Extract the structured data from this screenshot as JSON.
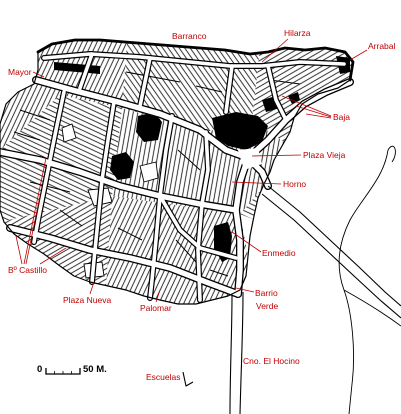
{
  "map": {
    "labels": {
      "barranco": "Barranco",
      "hilarza": "Hilarza",
      "arrabal": "Arrabal",
      "mayor": "Mayor",
      "baja": "Baja",
      "plaza_vieja": "Plaza Vieja",
      "horno": "Horno",
      "enmedio": "Enmedio",
      "b_castillo": "Bº Castillo",
      "barrio_verde": [
        "Barrio",
        "Verde"
      ],
      "plaza_nueva": "Plaza Nueva",
      "palomar": "Palomar",
      "escuelas": "Escuelas",
      "cno_el_hocino": "Cno. El Hocino"
    },
    "scale": {
      "zero": "0",
      "end": "50 M."
    },
    "colors": {
      "label": "#c00000",
      "ink": "#000000",
      "paper": "#ffffff"
    }
  }
}
